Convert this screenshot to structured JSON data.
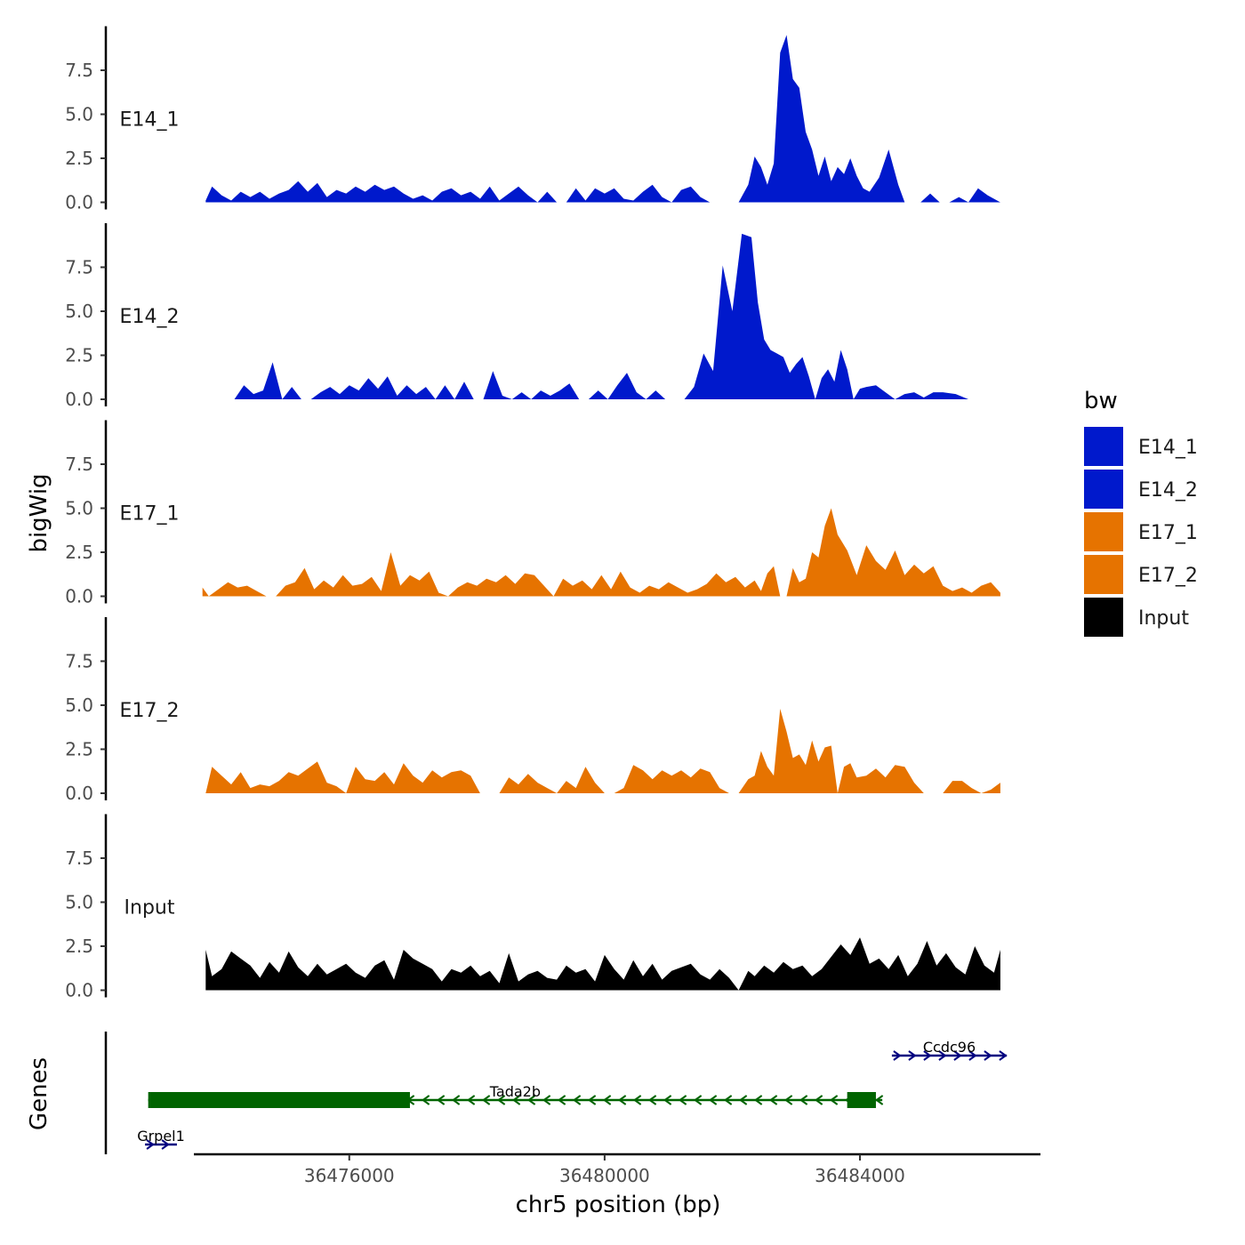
{
  "chart_data": {
    "type": "area",
    "title": "",
    "ylabel": "bigWig",
    "xlabel": "chr5 position (bp)",
    "genes_label": "Genes",
    "ylim": [
      0,
      10
    ],
    "xlim": [
      36472200,
      36486800
    ],
    "y_ticks": [
      0.0,
      2.5,
      5.0,
      7.5
    ],
    "y_tick_labels": [
      "0.0",
      "2.5",
      "5.0",
      "7.5"
    ],
    "x_ticks": [
      36476000,
      36480000,
      36484000
    ],
    "x_tick_labels": [
      "36476000",
      "36480000",
      "36484000"
    ],
    "colors": {
      "E14_1": "#0019cc",
      "E14_2": "#0019cc",
      "E17_1": "#e67300",
      "E17_2": "#e67300",
      "Input": "#000000"
    },
    "legend": {
      "title": "bw",
      "position": "right",
      "entries": [
        {
          "name": "E14_1",
          "color": "#0019cc"
        },
        {
          "name": "E14_2",
          "color": "#0019cc"
        },
        {
          "name": "E17_1",
          "color": "#e67300"
        },
        {
          "name": "E17_2",
          "color": "#e67300"
        },
        {
          "name": "Input",
          "color": "#000000"
        }
      ]
    },
    "tracks": [
      {
        "name": "E14_1",
        "label": "E14_1",
        "x": [
          36473750,
          36473850,
          36474000,
          36474150,
          36474300,
          36474450,
          36474600,
          36474750,
          36474900,
          36475050,
          36475200,
          36475350,
          36475500,
          36475650,
          36475800,
          36475950,
          36476100,
          36476250,
          36476400,
          36476550,
          36476700,
          36476850,
          36477000,
          36477150,
          36477300,
          36477450,
          36477600,
          36477750,
          36477900,
          36478050,
          36478200,
          36478350,
          36478500,
          36478650,
          36478800,
          36478950,
          36479100,
          36479250,
          36479400,
          36479550,
          36479700,
          36479850,
          36480000,
          36480150,
          36480300,
          36480450,
          36480600,
          36480750,
          36480900,
          36481050,
          36481200,
          36481350,
          36481500,
          36481650,
          36481800,
          36481950,
          36482100,
          36482250,
          36482350,
          36482450,
          36482550,
          36482650,
          36482750,
          36482850,
          36482950,
          36483050,
          36483150,
          36483250,
          36483350,
          36483450,
          36483550,
          36483650,
          36483750,
          36483850,
          36483950,
          36484050,
          36484150,
          36484300,
          36484450,
          36484600,
          36484700,
          36484800,
          36484950,
          36485100,
          36485250,
          36485400,
          36485550,
          36485700,
          36485850,
          36486000,
          36486200
        ],
        "values": [
          0.1,
          0.9,
          0.4,
          0.1,
          0.6,
          0.3,
          0.6,
          0.2,
          0.5,
          0.7,
          1.2,
          0.6,
          1.1,
          0.3,
          0.7,
          0.5,
          0.9,
          0.6,
          1.0,
          0.7,
          0.9,
          0.5,
          0.2,
          0.4,
          0.1,
          0.6,
          0.8,
          0.4,
          0.6,
          0.2,
          0.9,
          0.1,
          0.5,
          0.9,
          0.4,
          0.0,
          0.6,
          0.0,
          0.0,
          0.8,
          0.1,
          0.8,
          0.5,
          0.8,
          0.2,
          0.1,
          0.6,
          1.0,
          0.3,
          0.0,
          0.7,
          0.9,
          0.3,
          0.0,
          0.0,
          0.0,
          0.0,
          1.0,
          2.6,
          2.0,
          1.0,
          2.2,
          8.5,
          9.5,
          7.0,
          6.5,
          4.0,
          3.0,
          1.5,
          2.6,
          1.2,
          2.0,
          1.6,
          2.5,
          1.5,
          0.8,
          0.6,
          1.4,
          3.0,
          1.0,
          0.0,
          0.0,
          0.0,
          0.5,
          0.0,
          0.0,
          0.3,
          0.0,
          0.8,
          0.4,
          0.0
        ]
      },
      {
        "name": "E14_2",
        "label": "E14_2",
        "x": [
          36474200,
          36474350,
          36474500,
          36474650,
          36474800,
          36474950,
          36475100,
          36475250,
          36475400,
          36475550,
          36475700,
          36475850,
          36476000,
          36476150,
          36476300,
          36476450,
          36476600,
          36476750,
          36476900,
          36477050,
          36477200,
          36477350,
          36477500,
          36477650,
          36477800,
          36477950,
          36478100,
          36478250,
          36478400,
          36478550,
          36478700,
          36478850,
          36479000,
          36479150,
          36479300,
          36479450,
          36479600,
          36479750,
          36479900,
          36480050,
          36480200,
          36480350,
          36480500,
          36480650,
          36480800,
          36480950,
          36481100,
          36481250,
          36481400,
          36481550,
          36481700,
          36481850,
          36482000,
          36482150,
          36482300,
          36482400,
          36482500,
          36482600,
          36482700,
          36482800,
          36482900,
          36483000,
          36483100,
          36483200,
          36483300,
          36483400,
          36483500,
          36483600,
          36483700,
          36483800,
          36483900,
          36484000,
          36484100,
          36484250,
          36484400,
          36484550,
          36484700,
          36484850,
          36485000,
          36485150,
          36485300,
          36485500,
          36485700,
          36485900,
          36486100,
          36486200
        ],
        "values": [
          0.0,
          0.8,
          0.3,
          0.5,
          2.1,
          0.0,
          0.7,
          0.0,
          0.0,
          0.4,
          0.7,
          0.3,
          0.8,
          0.5,
          1.2,
          0.6,
          1.3,
          0.2,
          0.8,
          0.3,
          0.7,
          0.0,
          0.8,
          0.0,
          1.0,
          0.0,
          0.0,
          1.6,
          0.2,
          0.0,
          0.4,
          0.0,
          0.5,
          0.2,
          0.5,
          0.9,
          0.0,
          0.0,
          0.5,
          0.0,
          0.8,
          1.5,
          0.4,
          0.0,
          0.5,
          0.0,
          0.0,
          0.0,
          0.7,
          2.6,
          1.6,
          7.6,
          5.0,
          9.4,
          9.2,
          5.5,
          3.4,
          2.8,
          2.6,
          2.4,
          1.5,
          2.0,
          2.4,
          1.3,
          0.0,
          1.2,
          1.7,
          1.0,
          2.8,
          1.7,
          0.0,
          0.6,
          0.7,
          0.8,
          0.4,
          0.0,
          0.3,
          0.4,
          0.1,
          0.4,
          0.4,
          0.3,
          0.0,
          0.0,
          0.0,
          0.0
        ]
      },
      {
        "name": "E17_1",
        "label": "E17_1",
        "x": [
          36473700,
          36473800,
          36473950,
          36474100,
          36474250,
          36474400,
          36474550,
          36474700,
          36474850,
          36475000,
          36475150,
          36475300,
          36475450,
          36475600,
          36475750,
          36475900,
          36476050,
          36476200,
          36476350,
          36476500,
          36476650,
          36476800,
          36476950,
          36477100,
          36477250,
          36477400,
          36477550,
          36477700,
          36477850,
          36478000,
          36478150,
          36478300,
          36478450,
          36478600,
          36478750,
          36478900,
          36479050,
          36479200,
          36479350,
          36479500,
          36479650,
          36479800,
          36479950,
          36480100,
          36480250,
          36480400,
          36480550,
          36480700,
          36480850,
          36481000,
          36481150,
          36481300,
          36481450,
          36481600,
          36481750,
          36481900,
          36482050,
          36482200,
          36482350,
          36482450,
          36482550,
          36482650,
          36482750,
          36482850,
          36482950,
          36483050,
          36483150,
          36483250,
          36483350,
          36483450,
          36483550,
          36483650,
          36483800,
          36483950,
          36484100,
          36484250,
          36484400,
          36484550,
          36484700,
          36484850,
          36485000,
          36485150,
          36485300,
          36485450,
          36485600,
          36485750,
          36485900,
          36486050,
          36486200
        ],
        "values": [
          0.5,
          0.0,
          0.4,
          0.8,
          0.5,
          0.6,
          0.3,
          0.0,
          0.0,
          0.6,
          0.8,
          1.6,
          0.4,
          0.9,
          0.5,
          1.2,
          0.6,
          0.7,
          1.1,
          0.3,
          2.5,
          0.6,
          1.2,
          0.9,
          1.4,
          0.2,
          0.0,
          0.5,
          0.8,
          0.6,
          1.0,
          0.8,
          1.2,
          0.7,
          1.3,
          1.2,
          0.6,
          0.0,
          1.0,
          0.6,
          0.9,
          0.4,
          1.2,
          0.4,
          1.4,
          0.5,
          0.2,
          0.6,
          0.4,
          0.8,
          0.5,
          0.2,
          0.4,
          0.7,
          1.3,
          0.8,
          1.1,
          0.5,
          0.9,
          0.3,
          1.3,
          1.7,
          0.0,
          0.0,
          1.6,
          0.8,
          1.0,
          2.5,
          2.2,
          4.0,
          5.0,
          3.5,
          2.6,
          1.2,
          2.9,
          2.0,
          1.5,
          2.6,
          1.2,
          1.8,
          1.3,
          1.7,
          0.6,
          0.3,
          0.5,
          0.2,
          0.6,
          0.8,
          0.2
        ]
      },
      {
        "name": "E17_2",
        "label": "E17_2",
        "x": [
          36473750,
          36473850,
          36474000,
          36474150,
          36474300,
          36474450,
          36474600,
          36474750,
          36474900,
          36475050,
          36475200,
          36475350,
          36475500,
          36475650,
          36475800,
          36475950,
          36476100,
          36476250,
          36476400,
          36476550,
          36476700,
          36476850,
          36477000,
          36477150,
          36477300,
          36477450,
          36477600,
          36477750,
          36477900,
          36478050,
          36478200,
          36478350,
          36478500,
          36478650,
          36478800,
          36478950,
          36479100,
          36479250,
          36479400,
          36479550,
          36479700,
          36479850,
          36480000,
          36480150,
          36480300,
          36480450,
          36480600,
          36480750,
          36480900,
          36481050,
          36481200,
          36481350,
          36481500,
          36481650,
          36481800,
          36481950,
          36482100,
          36482250,
          36482350,
          36482450,
          36482550,
          36482650,
          36482750,
          36482850,
          36482950,
          36483050,
          36483150,
          36483250,
          36483350,
          36483450,
          36483550,
          36483650,
          36483750,
          36483850,
          36483950,
          36484100,
          36484250,
          36484400,
          36484550,
          36484700,
          36484850,
          36485000,
          36485150,
          36485300,
          36485450,
          36485600,
          36485750,
          36485900,
          36486050,
          36486200
        ],
        "values": [
          0.0,
          1.5,
          1.0,
          0.5,
          1.2,
          0.3,
          0.5,
          0.4,
          0.7,
          1.2,
          1.0,
          1.4,
          1.8,
          0.6,
          0.4,
          0.0,
          1.5,
          0.8,
          0.7,
          1.2,
          0.5,
          1.7,
          1.0,
          0.6,
          1.3,
          0.9,
          1.2,
          1.3,
          1.0,
          0.0,
          0.0,
          0.0,
          0.9,
          0.5,
          1.1,
          0.6,
          0.3,
          0.0,
          0.7,
          0.3,
          1.5,
          0.6,
          0.0,
          0.0,
          0.3,
          1.6,
          1.3,
          0.8,
          1.3,
          1.0,
          1.3,
          0.9,
          1.4,
          1.2,
          0.3,
          0.0,
          0.0,
          0.8,
          1.0,
          2.4,
          1.5,
          1.0,
          4.8,
          3.5,
          2.0,
          2.2,
          1.6,
          3.0,
          1.8,
          2.6,
          2.7,
          0.0,
          1.5,
          1.7,
          0.9,
          1.0,
          1.4,
          0.9,
          1.6,
          1.5,
          0.6,
          0.0,
          0.0,
          0.0,
          0.7,
          0.7,
          0.3,
          0.0,
          0.2,
          0.6
        ]
      },
      {
        "name": "Input",
        "label": "Input",
        "x": [
          36473750,
          36473850,
          36474000,
          36474150,
          36474300,
          36474450,
          36474600,
          36474750,
          36474900,
          36475050,
          36475200,
          36475350,
          36475500,
          36475650,
          36475800,
          36475950,
          36476100,
          36476250,
          36476400,
          36476550,
          36476700,
          36476850,
          36477000,
          36477150,
          36477300,
          36477450,
          36477600,
          36477750,
          36477900,
          36478050,
          36478200,
          36478350,
          36478500,
          36478650,
          36478800,
          36478950,
          36479100,
          36479250,
          36479400,
          36479550,
          36479700,
          36479850,
          36480000,
          36480150,
          36480300,
          36480450,
          36480600,
          36480750,
          36480900,
          36481050,
          36481200,
          36481350,
          36481500,
          36481650,
          36481800,
          36481950,
          36482100,
          36482250,
          36482350,
          36482500,
          36482650,
          36482800,
          36482950,
          36483100,
          36483250,
          36483400,
          36483550,
          36483700,
          36483850,
          36484000,
          36484150,
          36484300,
          36484450,
          36484600,
          36484750,
          36484900,
          36485050,
          36485200,
          36485350,
          36485500,
          36485650,
          36485800,
          36485950,
          36486100,
          36486200
        ],
        "values": [
          2.3,
          0.8,
          1.2,
          2.2,
          1.8,
          1.4,
          0.7,
          1.6,
          1.0,
          2.2,
          1.3,
          0.8,
          1.5,
          0.9,
          1.2,
          1.5,
          1.0,
          0.7,
          1.4,
          1.7,
          0.6,
          2.3,
          1.8,
          1.5,
          1.2,
          0.5,
          1.2,
          1.0,
          1.4,
          0.8,
          1.1,
          0.4,
          2.1,
          0.5,
          0.9,
          1.1,
          0.7,
          0.6,
          1.4,
          1.0,
          1.2,
          0.5,
          2.0,
          1.2,
          0.6,
          1.7,
          0.8,
          1.5,
          0.6,
          1.1,
          1.3,
          1.5,
          0.9,
          0.6,
          1.2,
          0.7,
          0.0,
          1.1,
          0.8,
          1.4,
          1.0,
          1.6,
          1.2,
          1.4,
          0.8,
          1.2,
          1.9,
          2.6,
          2.0,
          3.0,
          1.5,
          1.8,
          1.2,
          2.0,
          0.8,
          1.5,
          2.8,
          1.4,
          2.1,
          1.3,
          0.9,
          2.5,
          1.4,
          1.0,
          2.3
        ]
      }
    ],
    "genes": [
      {
        "name": "Ccdc96",
        "start": 36484500,
        "end": 36486300,
        "strand": "+",
        "color": "#000080",
        "row": 0,
        "exons": []
      },
      {
        "name": "Tada2b",
        "start": 36472850,
        "end": 36484350,
        "strand": "-",
        "color": "#006400",
        "row": 1,
        "exons": [
          [
            36472850,
            36476950
          ],
          [
            36483800,
            36484250
          ]
        ]
      },
      {
        "name": "Grpel1",
        "start": 36472800,
        "end": 36473300,
        "strand": "+",
        "color": "#000080",
        "row": 2,
        "exons": []
      }
    ]
  }
}
